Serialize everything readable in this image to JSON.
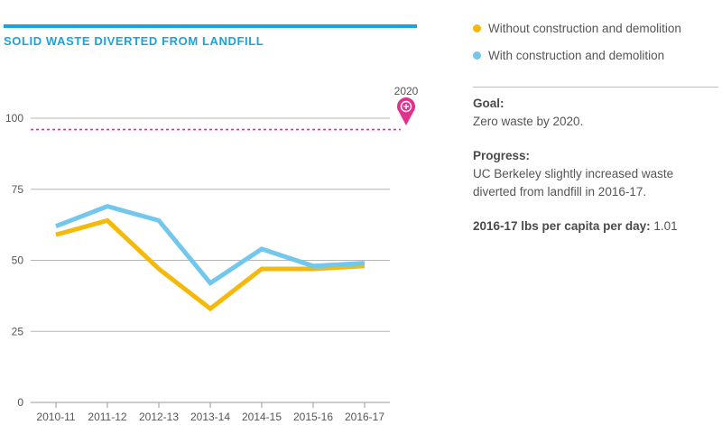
{
  "chart_data": {
    "type": "line",
    "title": "SOLID WASTE DIVERTED FROM LANDFILL",
    "categories": [
      "2010-11",
      "2011-12",
      "2012-13",
      "2013-14",
      "2014-15",
      "2015-16",
      "2016-17"
    ],
    "yticks": [
      0,
      25,
      50,
      75,
      100
    ],
    "ylim": [
      0,
      100
    ],
    "series": [
      {
        "name": "Without construction and demolition",
        "color": "#f5b90a",
        "values": [
          59,
          64,
          47,
          33,
          47,
          47,
          48
        ]
      },
      {
        "name": "With construction and demolition",
        "color": "#72c7ec",
        "values": [
          62,
          69,
          64,
          42,
          54,
          48,
          49
        ]
      }
    ],
    "goal": {
      "value": 96,
      "label": "2020",
      "color": "#e0318c"
    },
    "grid": true,
    "legend_position": "top-right"
  },
  "info": {
    "goal_heading": "Goal:",
    "goal_text": "Zero waste by 2020.",
    "progress_heading": "Progress:",
    "progress_text": "UC Berkeley slightly increased waste diverted from landfill in 2016-17.",
    "lbs_label": "2016-17 lbs per capita per day:",
    "lbs_value": "1.01"
  }
}
